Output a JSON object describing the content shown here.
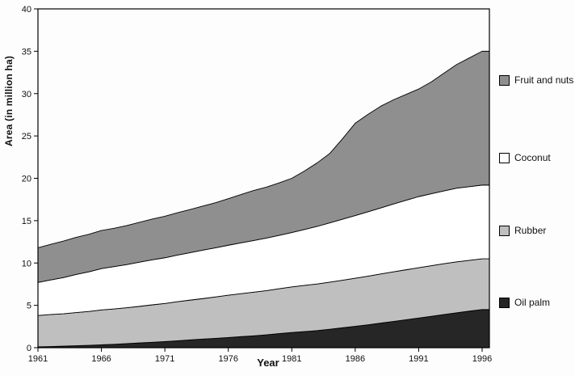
{
  "chart_data": {
    "type": "area",
    "stacked": true,
    "title": "",
    "xlabel": "Year",
    "ylabel": "Area (in million ha)",
    "grid": false,
    "legend_position": "right",
    "ylim": [
      0,
      40
    ],
    "yticks": [
      0,
      5,
      10,
      15,
      20,
      25,
      30,
      35,
      40
    ],
    "xticks": [
      1961,
      1966,
      1971,
      1976,
      1981,
      1986,
      1991,
      1996
    ],
    "x": [
      1961,
      1962,
      1963,
      1964,
      1965,
      1966,
      1967,
      1968,
      1969,
      1970,
      1971,
      1972,
      1973,
      1974,
      1975,
      1976,
      1977,
      1978,
      1979,
      1980,
      1981,
      1982,
      1983,
      1984,
      1985,
      1986,
      1987,
      1988,
      1989,
      1990,
      1991,
      1992,
      1993,
      1994,
      1995,
      1996
    ],
    "series": [
      {
        "name": "Oil palm",
        "color": "#262626",
        "values": [
          0.1,
          0.14,
          0.18,
          0.23,
          0.28,
          0.34,
          0.4,
          0.48,
          0.56,
          0.64,
          0.72,
          0.82,
          0.92,
          1.02,
          1.1,
          1.2,
          1.3,
          1.4,
          1.52,
          1.66,
          1.8,
          1.9,
          2.02,
          2.18,
          2.35,
          2.52,
          2.7,
          2.9,
          3.1,
          3.3,
          3.5,
          3.7,
          3.92,
          4.12,
          4.32,
          4.5
        ]
      },
      {
        "name": "Rubber",
        "color": "#bfbfbf",
        "values": [
          3.7,
          3.78,
          3.82,
          3.92,
          4.0,
          4.12,
          4.18,
          4.24,
          4.32,
          4.42,
          4.5,
          4.62,
          4.7,
          4.78,
          4.9,
          5.0,
          5.08,
          5.16,
          5.22,
          5.3,
          5.38,
          5.46,
          5.5,
          5.56,
          5.62,
          5.68,
          5.74,
          5.8,
          5.86,
          5.9,
          5.94,
          5.98,
          6.0,
          6.02,
          6.0,
          6.0
        ]
      },
      {
        "name": "Coconut",
        "color": "#ffffff",
        "values": [
          3.9,
          4.08,
          4.28,
          4.5,
          4.68,
          4.88,
          5.0,
          5.1,
          5.22,
          5.32,
          5.4,
          5.5,
          5.6,
          5.72,
          5.8,
          5.9,
          6.0,
          6.1,
          6.2,
          6.3,
          6.42,
          6.6,
          6.8,
          7.0,
          7.2,
          7.4,
          7.6,
          7.8,
          8.0,
          8.2,
          8.4,
          8.5,
          8.6,
          8.7,
          8.7,
          8.7
        ]
      },
      {
        "name": "Fruit and nuts",
        "color": "#8f8f8f",
        "values": [
          4.1,
          4.2,
          4.3,
          4.38,
          4.42,
          4.5,
          4.52,
          4.6,
          4.7,
          4.8,
          4.9,
          5.0,
          5.1,
          5.2,
          5.32,
          5.5,
          5.7,
          5.9,
          6.02,
          6.2,
          6.4,
          6.9,
          7.5,
          8.2,
          9.5,
          10.9,
          11.5,
          12.0,
          12.3,
          12.5,
          12.7,
          13.2,
          13.9,
          14.6,
          15.2,
          15.8
        ]
      }
    ],
    "legend": [
      {
        "label": "Fruit and nuts",
        "series": "Fruit and nuts",
        "top": 92
      },
      {
        "label": "Coconut",
        "series": "Coconut",
        "top": 188
      },
      {
        "label": "Rubber",
        "series": "Rubber",
        "top": 278
      },
      {
        "label": "Oil palm",
        "series": "Oil palm",
        "top": 367
      }
    ],
    "axis_color": "#000000",
    "tick_label_color": "#111111"
  }
}
